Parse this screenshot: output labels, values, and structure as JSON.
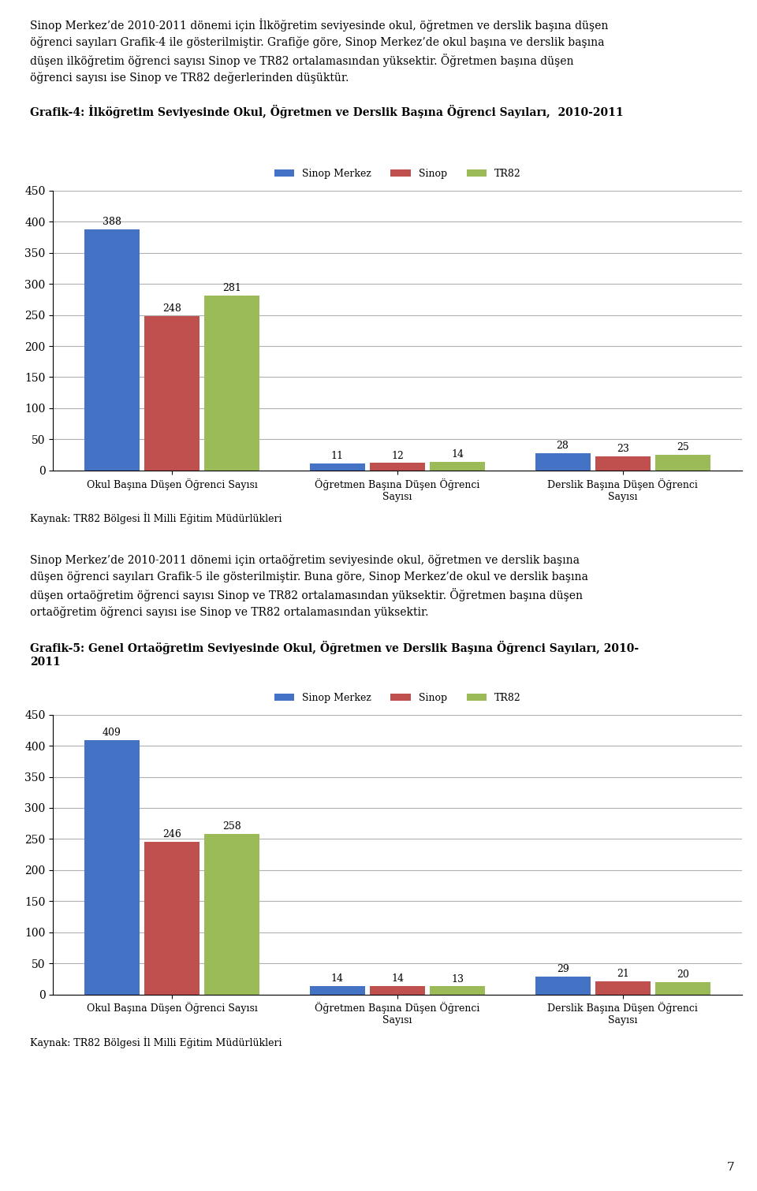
{
  "chart_data": [
    {
      "type": "bar",
      "annotations": [
        "Sinop Merkez’de 2010-2011 dönemi için İlköğretim seviyesinde okul, öğretmen ve derslik başına düşen\nöğrenci sayıları Grafik-4 ile gösterilmiştir. Grafiğe göre, Sinop Merkez’de okul başına ve derslik başına\ndüşen ilköğretim öğrenci sayısı Sinop ve TR82 ortalamasından yüksektir. Öğretmen başına düşen\nöğrenci sayısı ise Sinop ve TR82 değerlerinden düşüktür.",
        "Kaynak: TR82 Bölgesi İl Milli Eğitim Müdürlükleri"
      ],
      "title": "Grafik-4: İlköğretim Seviyesinde Okul, Öğretmen ve Derslik Başına Öğrenci Sayıları,  2010-2011",
      "categories": [
        "Okul Başına Düşen Öğrenci Sayısı",
        "Öğretmen Başına Düşen Öğrenci\nSayısı",
        "Derslik Başına Düşen Öğrenci\nSayısı"
      ],
      "series": [
        {
          "name": "Sinop Merkez",
          "color": "#4472C4",
          "values": [
            388,
            11,
            28
          ]
        },
        {
          "name": "Sinop",
          "color": "#C0504D",
          "values": [
            248,
            12,
            23
          ]
        },
        {
          "name": "TR82",
          "color": "#9BBB59",
          "values": [
            281,
            14,
            25
          ]
        }
      ],
      "ylim": [
        0,
        450
      ],
      "yticks": [
        0,
        50,
        100,
        150,
        200,
        250,
        300,
        350,
        400,
        450
      ],
      "grid": true,
      "legend": "upper center",
      "data_labels": true
    },
    {
      "type": "bar",
      "annotations": [
        "Sinop Merkez’de 2010-2011 dönemi için ortaöğretim seviyesinde okul, öğretmen ve derslik başına\ndüşen öğrenci sayıları Grafik-5 ile gösterilmiştir. Buna göre, Sinop Merkez’de okul ve derslik başına\ndüşen ortaöğretim öğrenci sayısı Sinop ve TR82 ortalamasından yüksektir. Öğretmen başına düşen\nortaöğretim öğrenci sayısı ise Sinop ve TR82 ortalamasından yüksektir.",
        "Kaynak: TR82 Bölgesi İl Milli Eğitim Müdürlükleri"
      ],
      "title": "Grafik-5: Genel Ortaöğretim Seviyesinde Okul, Öğretmen ve Derslik Başına Öğrenci Sayıları, 2010-\n2011",
      "categories": [
        "Okul Başına Düşen Öğrenci Sayısı",
        "Öğretmen Başına Düşen Öğrenci\nSayısı",
        "Derslik Başına Düşen Öğrenci\nSayısı"
      ],
      "series": [
        {
          "name": "Sinop Merkez",
          "color": "#4472C4",
          "values": [
            409,
            14,
            29
          ]
        },
        {
          "name": "Sinop",
          "color": "#C0504D",
          "values": [
            246,
            14,
            21
          ]
        },
        {
          "name": "TR82",
          "color": "#9BBB59",
          "values": [
            258,
            13,
            20
          ]
        }
      ],
      "ylim": [
        0,
        450
      ],
      "yticks": [
        0,
        50,
        100,
        150,
        200,
        250,
        300,
        350,
        400,
        450
      ],
      "grid": true,
      "legend": "upper center",
      "data_labels": true
    }
  ],
  "annotations": [
    "7"
  ]
}
